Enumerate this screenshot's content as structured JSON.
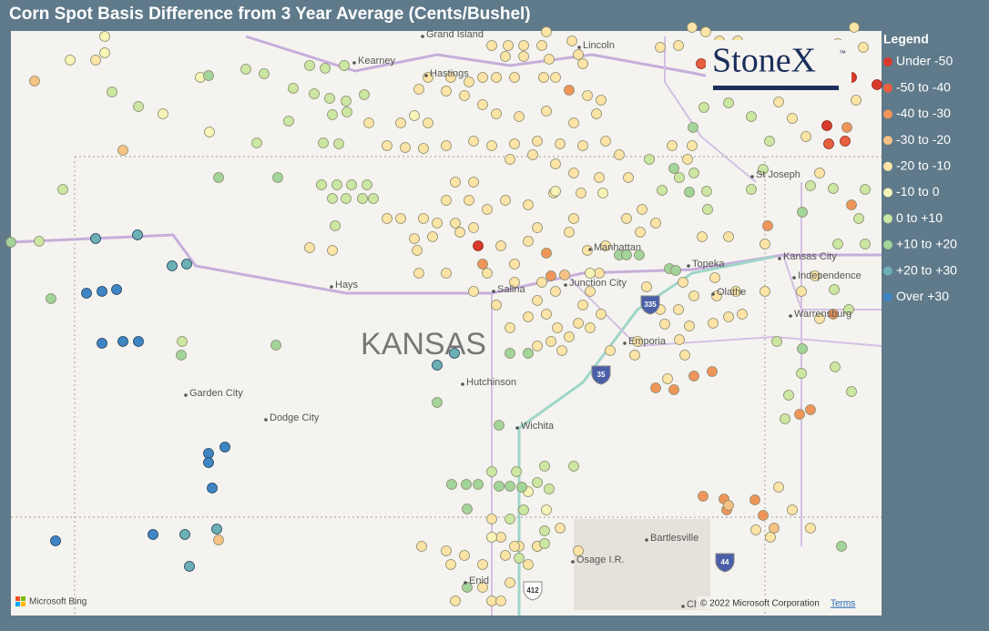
{
  "title": "Corn Spot Basis Difference from 3 Year Average (Cents/Bushel)",
  "legend": {
    "title": "Legend",
    "items": [
      {
        "label": "Under -50",
        "color": "#d93a2b"
      },
      {
        "label": "-50 to -40",
        "color": "#e9603f"
      },
      {
        "label": "-40 to -30",
        "color": "#f0955a"
      },
      {
        "label": "-30 to -20",
        "color": "#f6c283"
      },
      {
        "label": "-20 to -10",
        "color": "#fbe4a6"
      },
      {
        "label": "-10 to 0",
        "color": "#f6f4b6"
      },
      {
        "label": "0 to +10",
        "color": "#cbe7a2"
      },
      {
        "label": "+10 to +20",
        "color": "#a3d49a"
      },
      {
        "label": "+20 to +30",
        "color": "#6cafb4"
      },
      {
        "label": "Over +30",
        "color": "#3f85c4"
      }
    ]
  },
  "map": {
    "state_label": "KANSAS",
    "places": [
      "Grand Island",
      "Kearney",
      "Hastings",
      "Lincoln",
      "St Joseph",
      "Manhattan",
      "Topeka",
      "Kansas City",
      "Independence",
      "Hays",
      "Salina",
      "Junction City",
      "Olathe",
      "Emporia",
      "Hutchinson",
      "Warrensburg",
      "Garden City",
      "Dodge City",
      "Wichita",
      "Bartlesville",
      "Osage I.R.",
      "Enid",
      "Che"
    ],
    "highways": [
      "335",
      "35",
      "44",
      "412"
    ]
  },
  "logo": {
    "name": "StoneX",
    "mark": "™"
  },
  "footer": {
    "provider": "Microsoft Bing",
    "copyright": "© 2022 Microsoft Corporation",
    "terms": "Terms"
  }
}
